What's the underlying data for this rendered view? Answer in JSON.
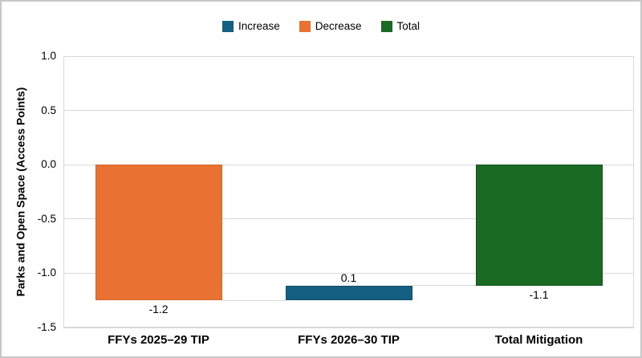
{
  "legend": {
    "items": [
      {
        "id": "increase",
        "label": "Increase",
        "color": "#156082"
      },
      {
        "id": "decrease",
        "label": "Decrease",
        "color": "#E97132"
      },
      {
        "id": "total",
        "label": "Total",
        "color": "#196B24"
      }
    ]
  },
  "chart_data": {
    "type": "bar",
    "subtype": "waterfall",
    "title": "",
    "xlabel": "",
    "ylabel": "Parks and Open Space (Access Points)",
    "ylim": [
      -1.5,
      1.0
    ],
    "ytick_labels": [
      "1.0",
      "0.5",
      "0.0",
      "-0.5",
      "-1.0",
      "-1.5"
    ],
    "ytick_values": [
      1.0,
      0.5,
      0.0,
      -0.5,
      -1.0,
      -1.5
    ],
    "grid": "horizontal",
    "legend_position": "top-center",
    "categories": [
      "FFYs 2025–29 TIP",
      "FFYs 2026–30 TIP",
      "Total Mitigation"
    ],
    "bars": [
      {
        "category": "FFYs 2025–29 TIP",
        "series": "Decrease",
        "value": -1.2,
        "label": "-1.2",
        "label_position": "below",
        "span": [
          -1.25,
          0
        ],
        "color": "#E97132",
        "border_color": "#D6672A"
      },
      {
        "category": "FFYs 2026–30 TIP",
        "series": "Increase",
        "value": 0.1,
        "label": "0.1",
        "label_position": "above",
        "span": [
          -1.25,
          -1.115
        ],
        "color": "#156082",
        "border_color": "#0F4D68"
      },
      {
        "category": "Total Mitigation",
        "series": "Total",
        "value": -1.1,
        "label": "-1.1",
        "label_position": "below",
        "span": [
          -1.115,
          0
        ],
        "color": "#196B24",
        "border_color": "#13541C"
      }
    ],
    "connectors": [
      {
        "level": -1.25,
        "from_category": 0,
        "to_category": 1
      },
      {
        "level": -1.115,
        "from_category": 1,
        "to_category": 2
      }
    ],
    "gridline_color": "#D9D9D9",
    "connector_color": "#D9D9D9"
  }
}
